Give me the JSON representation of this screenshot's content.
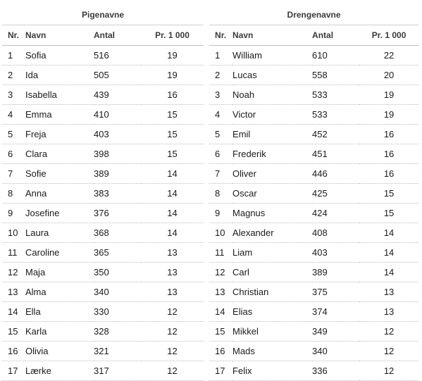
{
  "groups": {
    "girls": "Pigenavne",
    "boys": "Drengenavne"
  },
  "columns": {
    "nr": "Nr.",
    "name": "Navn",
    "count": "Antal",
    "per": "Pr. 1 000"
  },
  "rows": [
    {
      "g_nr": "1",
      "g_name": "Sofia",
      "g_count": "516",
      "g_per": "19",
      "b_nr": "1",
      "b_name": "William",
      "b_count": "610",
      "b_per": "22"
    },
    {
      "g_nr": "2",
      "g_name": "Ida",
      "g_count": "505",
      "g_per": "19",
      "b_nr": "2",
      "b_name": "Lucas",
      "b_count": "558",
      "b_per": "20"
    },
    {
      "g_nr": "3",
      "g_name": "Isabella",
      "g_count": "439",
      "g_per": "16",
      "b_nr": "3",
      "b_name": "Noah",
      "b_count": "533",
      "b_per": "19"
    },
    {
      "g_nr": "4",
      "g_name": "Emma",
      "g_count": "410",
      "g_per": "15",
      "b_nr": "4",
      "b_name": "Victor",
      "b_count": "533",
      "b_per": "19"
    },
    {
      "g_nr": "5",
      "g_name": "Freja",
      "g_count": "403",
      "g_per": "15",
      "b_nr": "5",
      "b_name": "Emil",
      "b_count": "452",
      "b_per": "16"
    },
    {
      "g_nr": "6",
      "g_name": "Clara",
      "g_count": "398",
      "g_per": "15",
      "b_nr": "6",
      "b_name": "Frederik",
      "b_count": "451",
      "b_per": "16"
    },
    {
      "g_nr": "7",
      "g_name": "Sofie",
      "g_count": "389",
      "g_per": "14",
      "b_nr": "7",
      "b_name": "Oliver",
      "b_count": "446",
      "b_per": "16"
    },
    {
      "g_nr": "8",
      "g_name": "Anna",
      "g_count": "383",
      "g_per": "14",
      "b_nr": "8",
      "b_name": "Oscar",
      "b_count": "425",
      "b_per": "15"
    },
    {
      "g_nr": "9",
      "g_name": "Josefine",
      "g_count": "376",
      "g_per": "14",
      "b_nr": "9",
      "b_name": "Magnus",
      "b_count": "424",
      "b_per": "15"
    },
    {
      "g_nr": "10",
      "g_name": "Laura",
      "g_count": "368",
      "g_per": "14",
      "b_nr": "10",
      "b_name": "Alexander",
      "b_count": "408",
      "b_per": "14"
    },
    {
      "g_nr": "11",
      "g_name": "Caroline",
      "g_count": "365",
      "g_per": "13",
      "b_nr": "11",
      "b_name": "Liam",
      "b_count": "403",
      "b_per": "14"
    },
    {
      "g_nr": "12",
      "g_name": "Maja",
      "g_count": "350",
      "g_per": "13",
      "b_nr": "12",
      "b_name": "Carl",
      "b_count": "389",
      "b_per": "14"
    },
    {
      "g_nr": "13",
      "g_name": "Alma",
      "g_count": "340",
      "g_per": "13",
      "b_nr": "13",
      "b_name": "Christian",
      "b_count": "375",
      "b_per": "13"
    },
    {
      "g_nr": "14",
      "g_name": "Ella",
      "g_count": "330",
      "g_per": "12",
      "b_nr": "14",
      "b_name": "Elias",
      "b_count": "374",
      "b_per": "13"
    },
    {
      "g_nr": "15",
      "g_name": "Karla",
      "g_count": "328",
      "g_per": "12",
      "b_nr": "15",
      "b_name": "Mikkel",
      "b_count": "349",
      "b_per": "12"
    },
    {
      "g_nr": "16",
      "g_name": "Olivia",
      "g_count": "321",
      "g_per": "12",
      "b_nr": "16",
      "b_name": "Mads",
      "b_count": "340",
      "b_per": "12"
    },
    {
      "g_nr": "17",
      "g_name": "Lærke",
      "g_count": "317",
      "g_per": "12",
      "b_nr": "17",
      "b_name": "Felix",
      "b_count": "336",
      "b_per": "12"
    }
  ]
}
